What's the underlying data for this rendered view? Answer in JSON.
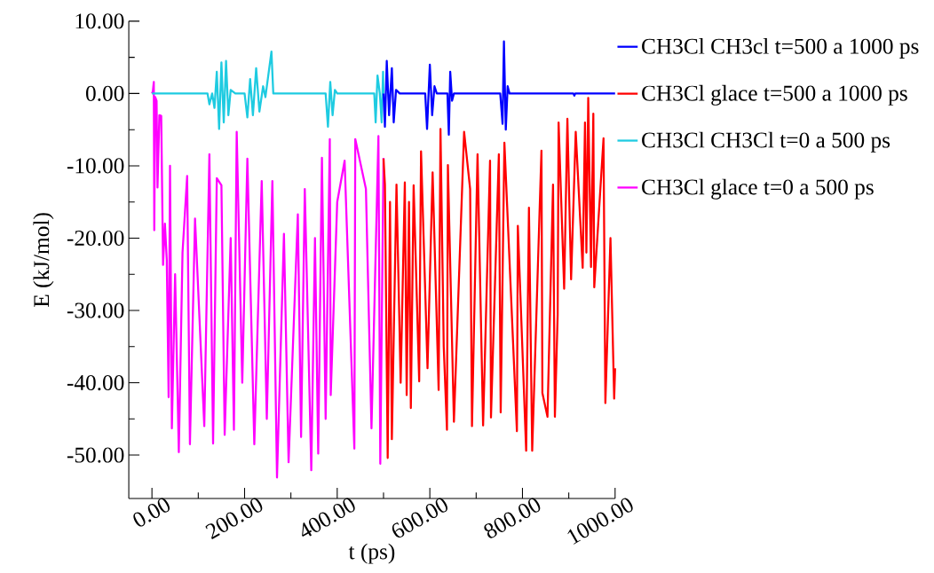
{
  "chart_data": {
    "type": "line",
    "xlabel": "t (ps)",
    "ylabel": "E (kJ/mol)",
    "xlim": [
      -50,
      1000
    ],
    "ylim": [
      -56,
      10
    ],
    "xticks": [
      {
        "value": 0,
        "label": "0.00"
      },
      {
        "value": 200,
        "label": "200.00"
      },
      {
        "value": 400,
        "label": "400.00"
      },
      {
        "value": 600,
        "label": "600.00"
      },
      {
        "value": 800,
        "label": "800.00"
      },
      {
        "value": 1000,
        "label": "1000.00"
      }
    ],
    "yticks": [
      {
        "value": -50,
        "label": "-50.00"
      },
      {
        "value": -40,
        "label": "-40.00"
      },
      {
        "value": -30,
        "label": "-30.00"
      },
      {
        "value": -20,
        "label": "-20.00"
      },
      {
        "value": -10,
        "label": "-10.00"
      },
      {
        "value": 0,
        "label": "0.00"
      },
      {
        "value": 10,
        "label": "10.00"
      }
    ],
    "legend": "top right",
    "marker": "none",
    "line_style": "solid",
    "series": [
      {
        "name": "CH3Cl CH3cl t=500 a 1000 ps",
        "color": "#0000ff",
        "x": [
          500,
          503,
          507,
          512,
          518,
          522,
          527,
          535,
          590,
          594,
          600,
          605,
          610,
          615,
          638,
          641,
          644,
          648,
          652,
          752,
          757,
          760,
          764,
          768,
          772,
          910,
          912,
          914,
          1000
        ],
        "values": [
          0,
          -4.6,
          4.5,
          -3,
          3.5,
          -4,
          0.5,
          0,
          0,
          -4.9,
          4,
          -3,
          1,
          0,
          0,
          -5.7,
          3,
          -1,
          0,
          0,
          -4.2,
          7.2,
          -5,
          1,
          0,
          0,
          -0.3,
          0,
          0
        ]
      },
      {
        "name": "CH3Cl glace t=500 a 1000 ps",
        "color": "#ff0000",
        "x": [
          500,
          503,
          509,
          514,
          518,
          528,
          537,
          546,
          550,
          555,
          559,
          565,
          577,
          581,
          595,
          606,
          619,
          623,
          630,
          637,
          639,
          652,
          674,
          687,
          691,
          703,
          715,
          730,
          732,
          749,
          753,
          761,
          788,
          790,
          808,
          814,
          821,
          841,
          843,
          854,
          866,
          870,
          876,
          878,
          890,
          897,
          905,
          915,
          930,
          935,
          938,
          942,
          948,
          953,
          955,
          975,
          979,
          990,
          998,
          1000
        ],
        "values": [
          -9,
          -12.6,
          -50.4,
          -15,
          -47.8,
          -12.6,
          -40,
          -12.3,
          -41.7,
          -15,
          -43.5,
          -12.7,
          -39.8,
          -8,
          -38,
          -10.9,
          -41,
          -4.9,
          -35,
          -46.5,
          -9.9,
          -45.4,
          -5.3,
          -13.2,
          -46,
          -8.4,
          -45.9,
          -9.3,
          -44.8,
          -8.4,
          -44.1,
          -6.8,
          -46.7,
          -18.3,
          -49.4,
          -15.8,
          -49.4,
          -7.9,
          -41.4,
          -44.7,
          -12.6,
          -44.7,
          -30.6,
          -4,
          -27,
          -3.5,
          -25.7,
          -5.3,
          -24.1,
          -4,
          -22,
          -0.6,
          -24,
          -2.8,
          -26.8,
          -6.2,
          -42.8,
          -20,
          -42.2,
          -38
        ]
      },
      {
        "name": "CH3Cl CH3Cl t=0 a 500 ps",
        "color": "#1ecbe1",
        "x": [
          0,
          120,
          124,
          130,
          135,
          140,
          145,
          150,
          155,
          160,
          165,
          170,
          180,
          200,
          206,
          212,
          218,
          225,
          232,
          240,
          245,
          258,
          262,
          300,
          375,
          380,
          385,
          390,
          395,
          400,
          480,
          483,
          487,
          492,
          496,
          499,
          500
        ],
        "values": [
          0,
          0,
          -1.5,
          0,
          -2,
          3,
          -4.9,
          4.3,
          -4,
          4.5,
          -3,
          0.5,
          0,
          0,
          -3.3,
          2,
          -3,
          3.5,
          -2.5,
          1,
          -0.5,
          5.8,
          0,
          0,
          0,
          -4.6,
          1.6,
          -3,
          0.5,
          0,
          0,
          -4,
          2.5,
          0,
          -4,
          3,
          0
        ]
      },
      {
        "name": "CH3Cl glace t=0 a 500 ps",
        "color": "#ff00ff",
        "x": [
          0,
          2,
          4,
          5,
          7,
          10,
          12,
          16,
          20,
          24,
          28,
          32,
          36,
          39,
          43,
          50,
          58,
          66,
          76,
          82,
          93,
          113,
          124,
          132,
          140,
          150,
          157,
          170,
          177,
          183,
          195,
          206,
          221,
          237,
          248,
          260,
          270,
          285,
          295,
          315,
          322,
          330,
          344,
          352,
          359,
          367,
          375,
          384,
          386,
          400,
          416,
          437,
          439,
          462,
          474,
          489,
          493,
          500
        ],
        "values": [
          0,
          0.3,
          1.6,
          -18.9,
          -0.5,
          -1,
          -13,
          -3,
          -3.1,
          -23.7,
          -18,
          -23,
          -42,
          -10,
          -46.3,
          -25,
          -49.6,
          -22,
          -11.4,
          -48.5,
          -17.3,
          -46,
          -8.4,
          -48.4,
          -11.7,
          -12.7,
          -47.2,
          -20,
          -46.5,
          -5.3,
          -40,
          -9,
          -48.5,
          -12.1,
          -45,
          -12.1,
          -53.1,
          -19.4,
          -51,
          -16.7,
          -47.5,
          -13.2,
          -52.1,
          -20,
          -49.8,
          -8.9,
          -45,
          -6.3,
          -41.7,
          -15,
          -9.3,
          -49.1,
          -6.3,
          -13.2,
          -46.3,
          -5.9,
          -51.2,
          -8.9
        ]
      }
    ]
  }
}
